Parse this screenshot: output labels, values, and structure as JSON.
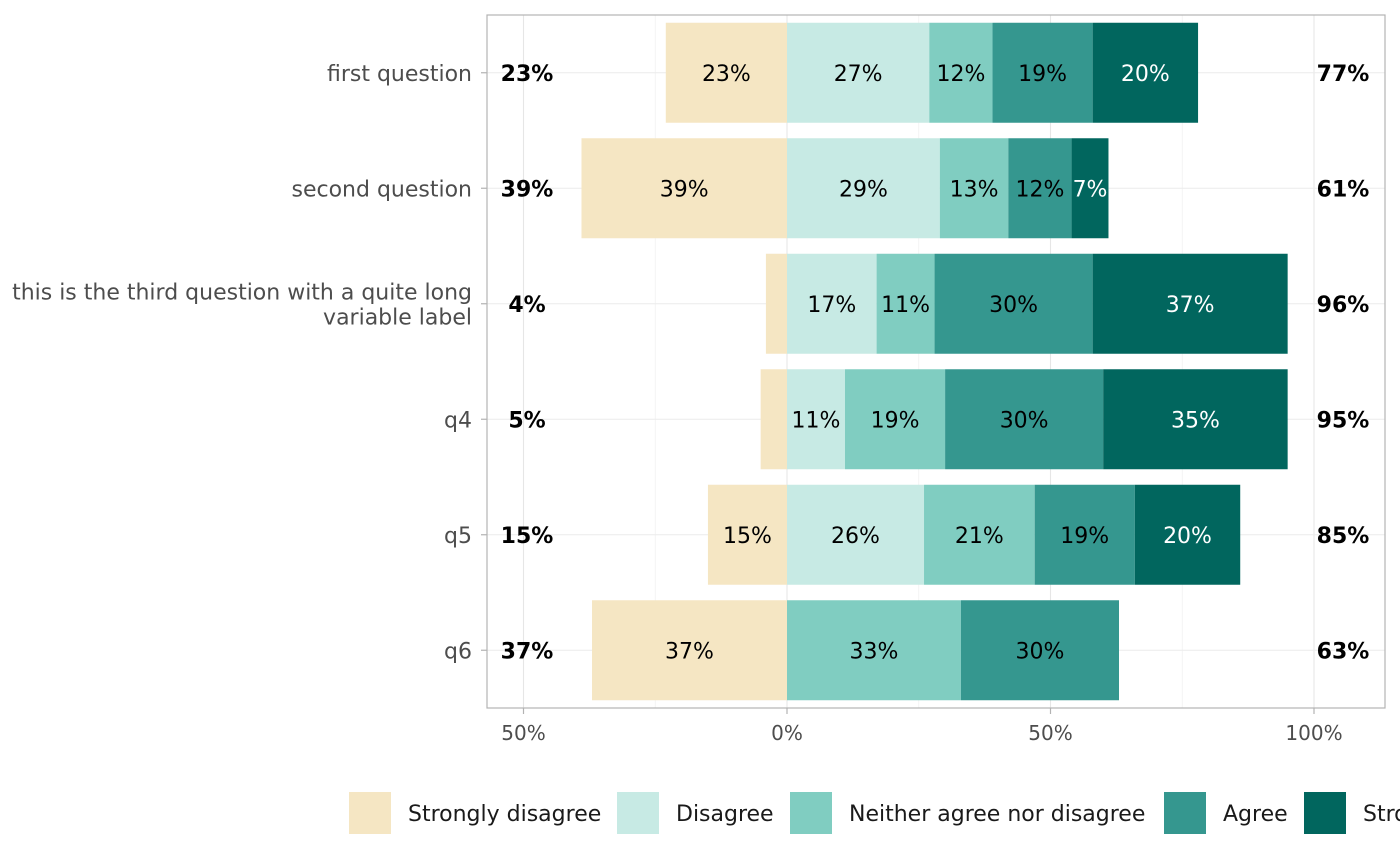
{
  "chart_data": {
    "type": "bar",
    "orientation": "horizontal",
    "stacked": "diverging",
    "title": "",
    "xlabel": "",
    "ylabel": "",
    "xlim": [
      -50,
      100
    ],
    "x_ticks": [
      -50,
      0,
      50,
      100
    ],
    "x_tick_labels": [
      "50%",
      "0%",
      "50%",
      "100%"
    ],
    "grid": true,
    "legend_position": "bottom",
    "categories": [
      "first question",
      "second question",
      "this is the third question with a quite long\nvariable label",
      "q4",
      "q5",
      "q6"
    ],
    "series": [
      {
        "name": "Strongly disagree",
        "color": "#f5e6c3",
        "direction": "left",
        "text_color": "#000000",
        "values": [
          23,
          39,
          4,
          5,
          15,
          37
        ],
        "labels": [
          "23%",
          "39%",
          "",
          "",
          "15%",
          "37%"
        ]
      },
      {
        "name": "Disagree",
        "color": "#c7eae4",
        "direction": "right",
        "text_color": "#000000",
        "values": [
          27,
          29,
          17,
          11,
          26,
          0
        ],
        "labels": [
          "27%",
          "29%",
          "17%",
          "11%",
          "26%",
          ""
        ]
      },
      {
        "name": "Neither agree nor disagree",
        "color": "#80cdc1",
        "direction": "right",
        "text_color": "#000000",
        "values": [
          12,
          13,
          11,
          19,
          21,
          33
        ],
        "labels": [
          "12%",
          "13%",
          "11%",
          "19%",
          "21%",
          "33%"
        ]
      },
      {
        "name": "Agree",
        "color": "#35978f",
        "direction": "right",
        "text_color": "#000000",
        "values": [
          19,
          12,
          30,
          30,
          19,
          30
        ],
        "labels": [
          "19%",
          "12%",
          "30%",
          "30%",
          "19%",
          "30%"
        ]
      },
      {
        "name": "Strongly agree",
        "color": "#01665e",
        "direction": "right",
        "text_color": "#ffffff",
        "values": [
          20,
          7,
          37,
          35,
          20,
          0
        ],
        "labels": [
          "20%",
          "7%",
          "37%",
          "35%",
          "20%",
          ""
        ]
      }
    ],
    "left_totals": [
      "23%",
      "39%",
      "4%",
      "5%",
      "15%",
      "37%"
    ],
    "right_totals": [
      "77%",
      "61%",
      "96%",
      "95%",
      "85%",
      "63%"
    ],
    "legend_labels": [
      "Strongly disagree",
      "Disagree",
      "Neither agree nor disagree",
      "Agree",
      "Stro"
    ]
  }
}
